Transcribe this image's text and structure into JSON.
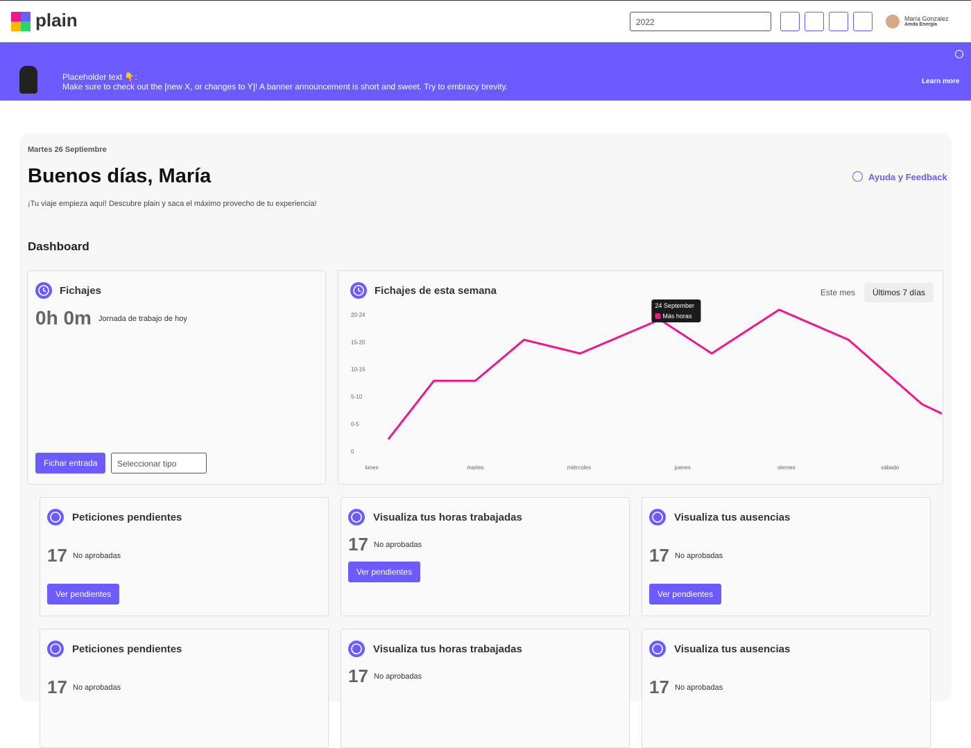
{
  "header": {
    "logo": "plain",
    "year": "2022",
    "user_name": "María Gonzalez",
    "user_company": "Amda Energía"
  },
  "banner": {
    "title": "Placeholder text 👇:",
    "text": "Make sure to check out the [new X, or changes to Y]! A banner announcement is short and sweet. Try to embracy brevity.",
    "link": "Learn more"
  },
  "greeting": {
    "date": "Martes 26 Septiembre",
    "title": "Buenos días, María",
    "subtitle": "¡Tu viaje empieza aquí! Descubre plain y saca el máximo provecho de tu experiencia!",
    "help": "Ayuda y Feedback",
    "section": "Dashboard"
  },
  "fichajes": {
    "title": "Fichajes",
    "time": "0h 0m",
    "caption": "Jornada de trabajo de hoy",
    "button": "Fichar entrada",
    "select": "Seleccionar tipo"
  },
  "chart_card": {
    "tabs": [
      "Este mes",
      "Últimos 7 días"
    ]
  },
  "chart_data": {
    "type": "line",
    "title": "Fichajes de esta semana",
    "x": [
      0.16,
      0.6,
      1.0,
      1.47,
      2.01,
      2.78,
      3.28,
      3.93,
      4.6,
      5.31,
      5.5
    ],
    "series": [
      {
        "name": "Más horas",
        "color": "#f0168c",
        "values": [
          2.2,
          12.9,
          12.9,
          20.4,
          17.9,
          24.1,
          17.9,
          25.9,
          20.4,
          8.6,
          6.9
        ]
      }
    ],
    "xlim": [
      -0.2,
      5.5
    ],
    "xticks": [
      {
        "value": 0,
        "label": "lunes"
      },
      {
        "value": 1,
        "label": "martes"
      },
      {
        "value": 2,
        "label": "miércoles"
      },
      {
        "value": 3,
        "label": "jueves"
      },
      {
        "value": 4,
        "label": "viernes"
      },
      {
        "value": 5,
        "label": "sábado"
      }
    ],
    "ylim": [
      0,
      26
    ],
    "yticks": [
      0,
      {
        "value": 5,
        "label": "0-5"
      },
      {
        "value": 10,
        "label": "5-10"
      },
      {
        "value": 15,
        "label": "10-15"
      },
      {
        "value": 20,
        "label": "15-20"
      },
      {
        "value": 25,
        "label": "20-24"
      }
    ],
    "grid": false,
    "tooltip": {
      "title": "24 September",
      "index": 5
    }
  },
  "cards": [
    {
      "title": "Peticiones pendientes",
      "count": 17,
      "caption": "No aprobadas",
      "button": "Ver pendientes"
    },
    {
      "title": "Visualiza tus horas trabajadas",
      "count": 17,
      "caption": "No aprobadas",
      "button": "Ver pendientes"
    },
    {
      "title": "Visualiza tus ausencias",
      "count": 17,
      "caption": "No aprobadas",
      "button": "Ver pendientes"
    },
    {
      "title": "Peticiones pendientes",
      "count": 17,
      "caption": "No aprobadas"
    },
    {
      "title": "Visualiza tus horas trabajadas",
      "count": 17,
      "caption": "No aprobadas"
    },
    {
      "title": "Visualiza tus ausencias",
      "count": 17,
      "caption": "No aprobadas"
    }
  ]
}
